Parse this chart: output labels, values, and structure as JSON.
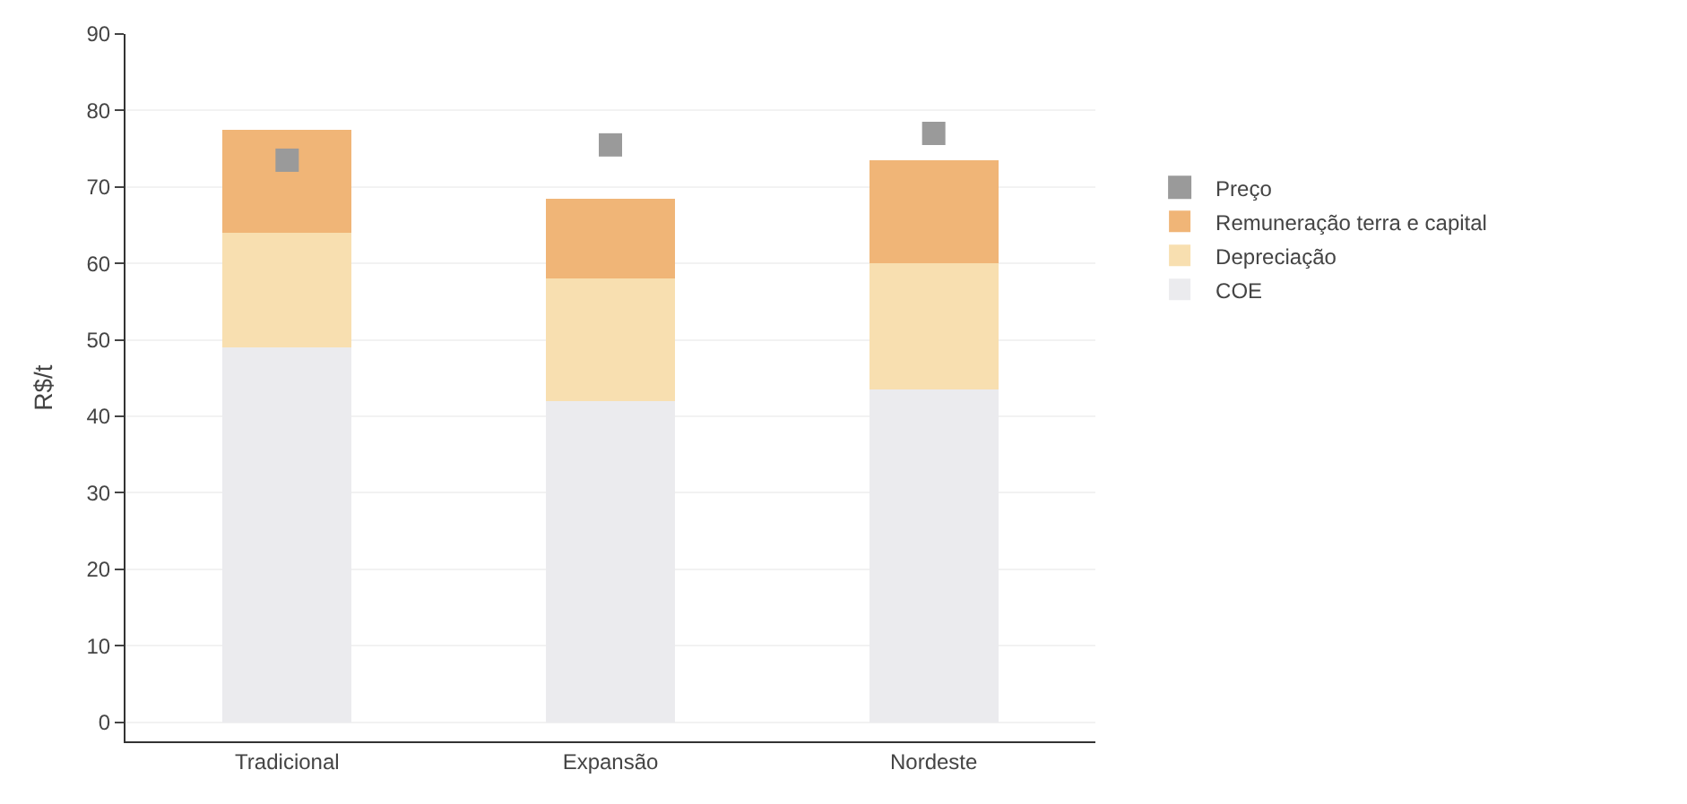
{
  "chart_data": {
    "type": "bar",
    "stacked": true,
    "ylabel": "R$/t",
    "categories": [
      "Tradicional",
      "Expansão",
      "Nordeste"
    ],
    "series": [
      {
        "name": "COE",
        "color": "#ebebee",
        "values": [
          49,
          42,
          43.5
        ]
      },
      {
        "name": "Depreciação",
        "color": "#f8dfb0",
        "values": [
          15,
          16,
          16.5
        ]
      },
      {
        "name": "Remuneração terra e capital",
        "color": "#f0b577",
        "values": [
          13.5,
          10.5,
          13.5
        ]
      },
      {
        "name": "Preço",
        "color": "#9a9a9a",
        "type": "scatter",
        "marker": "square",
        "values": [
          73.5,
          75.5,
          77
        ]
      }
    ],
    "ylim": [
      -2.5,
      90
    ],
    "yticks": [
      0,
      10,
      20,
      30,
      40,
      50,
      60,
      70,
      80,
      90
    ],
    "grid": "y",
    "legend": "right"
  }
}
